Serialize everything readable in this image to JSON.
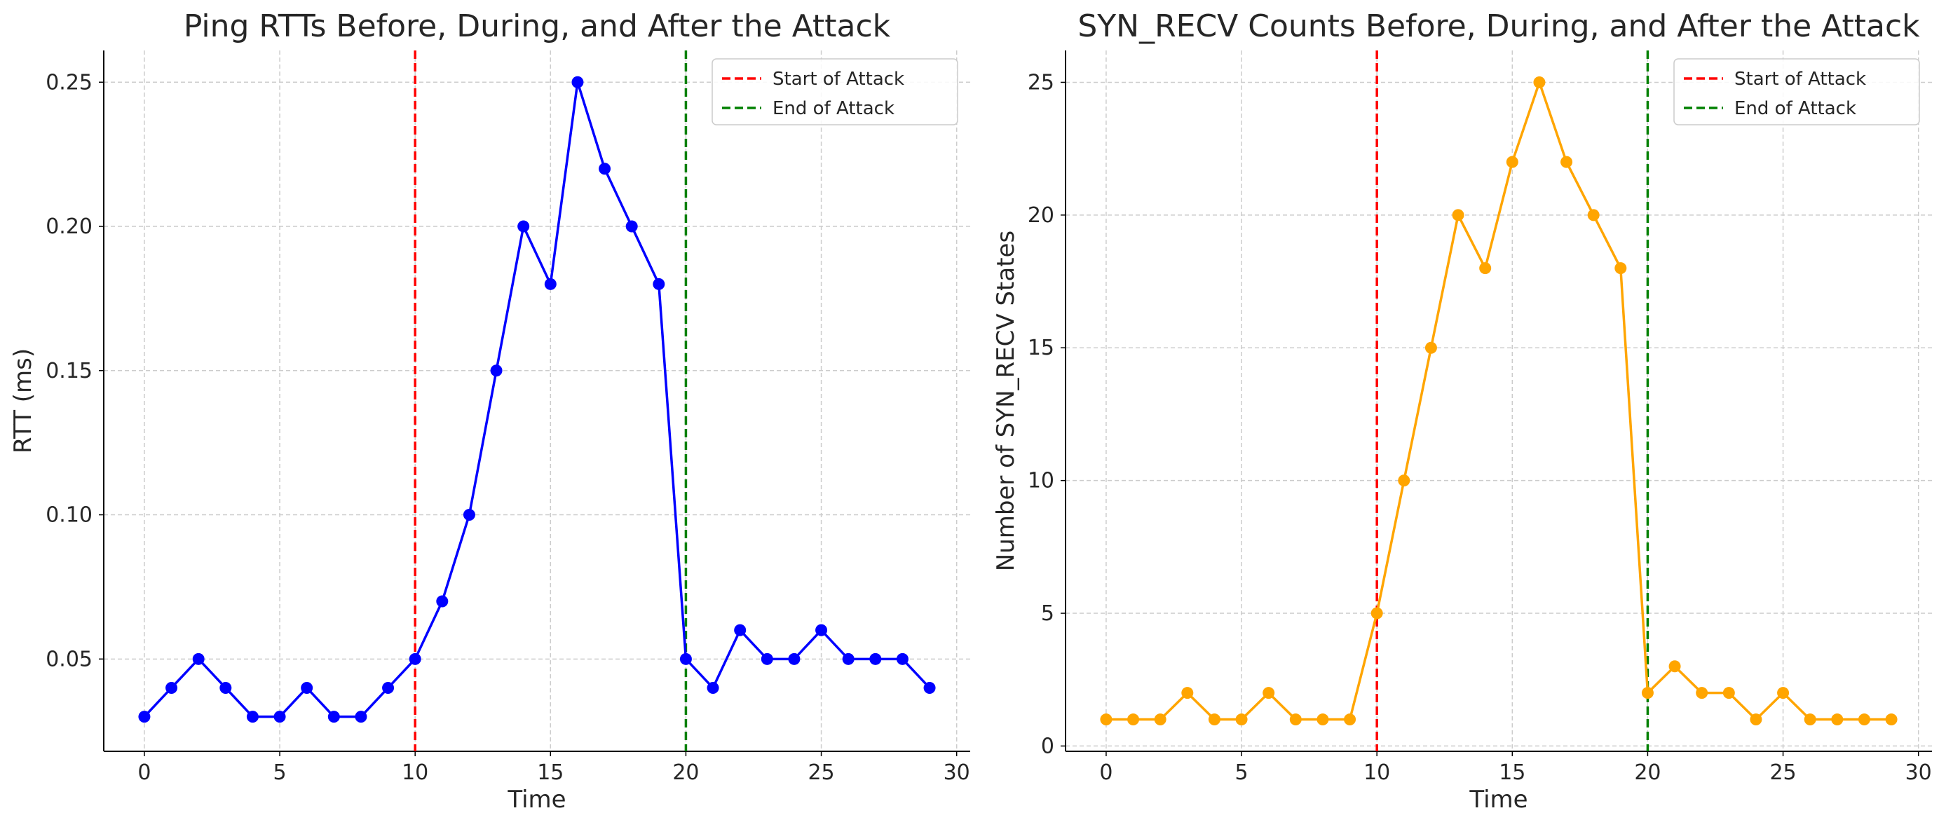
{
  "chart_data": [
    {
      "type": "line",
      "title": "Ping RTTs Before, During, and After the Attack",
      "xlabel": "Time",
      "ylabel": "RTT (ms)",
      "xlim": [
        -1.5,
        30.5
      ],
      "ylim": [
        0.018,
        0.261
      ],
      "xticks": [
        0,
        5,
        10,
        15,
        20,
        25,
        30
      ],
      "yticks": [
        0.05,
        0.1,
        0.15,
        0.2,
        0.25
      ],
      "ytick_labels": [
        "0.05",
        "0.10",
        "0.15",
        "0.20",
        "0.25"
      ],
      "grid": true,
      "legend_position": "top-right",
      "series": [
        {
          "color": "#0000ff",
          "marker": "circle",
          "x": [
            0,
            1,
            2,
            3,
            4,
            5,
            6,
            7,
            8,
            9,
            10,
            11,
            12,
            13,
            14,
            15,
            16,
            17,
            18,
            19,
            20,
            21,
            22,
            23,
            24,
            25,
            26,
            27,
            28,
            29
          ],
          "y": [
            0.03,
            0.04,
            0.05,
            0.04,
            0.03,
            0.03,
            0.04,
            0.03,
            0.03,
            0.04,
            0.05,
            0.07,
            0.1,
            0.15,
            0.2,
            0.18,
            0.25,
            0.22,
            0.2,
            0.18,
            0.05,
            0.04,
            0.06,
            0.05,
            0.05,
            0.06,
            0.05,
            0.05,
            0.05,
            0.04
          ]
        }
      ],
      "vlines": [
        {
          "x": 10,
          "color": "#ff0000",
          "label": "Start of Attack"
        },
        {
          "x": 20,
          "color": "#008000",
          "label": "End of Attack"
        }
      ]
    },
    {
      "type": "line",
      "title": "SYN_RECV Counts Before, During, and After the Attack",
      "xlabel": "Time",
      "ylabel": "Number of SYN_RECV States",
      "xlim": [
        -1.5,
        30.5
      ],
      "ylim": [
        -0.2,
        26.2
      ],
      "xticks": [
        0,
        5,
        10,
        15,
        20,
        25,
        30
      ],
      "yticks": [
        0,
        5,
        10,
        15,
        20,
        25
      ],
      "ytick_labels": [
        "0",
        "5",
        "10",
        "15",
        "20",
        "25"
      ],
      "grid": true,
      "legend_position": "top-right",
      "series": [
        {
          "color": "#ffa500",
          "marker": "circle",
          "x": [
            0,
            1,
            2,
            3,
            4,
            5,
            6,
            7,
            8,
            9,
            10,
            11,
            12,
            13,
            14,
            15,
            16,
            17,
            18,
            19,
            20,
            21,
            22,
            23,
            24,
            25,
            26,
            27,
            28,
            29
          ],
          "y": [
            1,
            1,
            1,
            2,
            1,
            1,
            2,
            1,
            1,
            1,
            5,
            10,
            15,
            20,
            18,
            22,
            25,
            22,
            20,
            18,
            2,
            3,
            2,
            2,
            1,
            2,
            1,
            1,
            1,
            1
          ]
        }
      ],
      "vlines": [
        {
          "x": 10,
          "color": "#ff0000",
          "label": "Start of Attack"
        },
        {
          "x": 20,
          "color": "#008000",
          "label": "End of Attack"
        }
      ]
    }
  ]
}
